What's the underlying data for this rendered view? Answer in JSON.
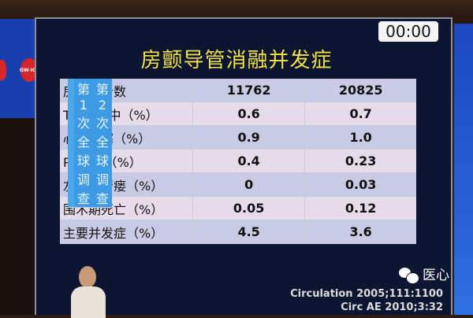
{
  "slide": {
    "timer": "00:00",
    "title": "房颤导管消融并发症",
    "table": {
      "headers": [
        "",
        "第1次全球调查",
        "第2次全球调查"
      ],
      "rows": [
        {
          "label": "房颤患者数",
          "survey1": "11762",
          "survey2": "20825"
        },
        {
          "label": "TIA或卒中（%）",
          "survey1": "0.6",
          "survey2": "0.7"
        },
        {
          "label": "心脏压塞（%）",
          "survey1": "0.9",
          "survey2": "1.0"
        },
        {
          "label": "PV狭窄（%）",
          "survey1": "0.4",
          "survey2": "0.23"
        },
        {
          "label": "左房食管瘘（%）",
          "survey1": "0",
          "survey2": "0.03"
        },
        {
          "label": "围术期死亡（%）",
          "survey1": "0.05",
          "survey2": "0.12"
        },
        {
          "label": "主要并发症（%）",
          "survey1": "4.5",
          "survey2": "3.6"
        }
      ]
    },
    "citations": [
      "Circulation 2005;111:1100",
      "Circ AE 2010;3:32"
    ]
  },
  "banner": {
    "logo_text": "GW-ICC"
  },
  "watermark": {
    "icon": "wechat-icon",
    "text": "医心"
  },
  "colors": {
    "title": "#f0e24a",
    "header": "#3e9be3",
    "screen": "#0d1530"
  }
}
